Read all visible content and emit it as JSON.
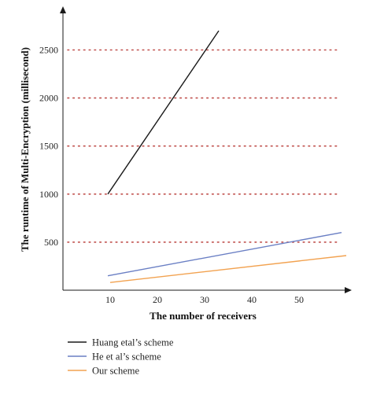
{
  "chart_data": {
    "type": "line",
    "xlabel": "The number of receivers",
    "ylabel": "The runtime of Multi-Encryption (millisecond)",
    "xlim": [
      0,
      60
    ],
    "ylim": [
      0,
      2900
    ],
    "x_ticks": [
      10,
      20,
      30,
      40,
      50
    ],
    "y_ticks": [
      500,
      1000,
      1500,
      2000,
      2500
    ],
    "grid": "horizontal dotted",
    "grid_color": "#c0504d",
    "legend_position": "bottom-left",
    "series": [
      {
        "name": "Huang etal’s scheme",
        "color": "#1a1a1a",
        "x": [
          9.5,
          33
        ],
        "y": [
          1000,
          2700
        ]
      },
      {
        "name": "He et al’s scheme",
        "color": "#6a7fc4",
        "x": [
          9.5,
          59
        ],
        "y": [
          150,
          600
        ]
      },
      {
        "name": "Our scheme",
        "color": "#f2a250",
        "x": [
          10,
          60
        ],
        "y": [
          80,
          360
        ]
      }
    ]
  }
}
